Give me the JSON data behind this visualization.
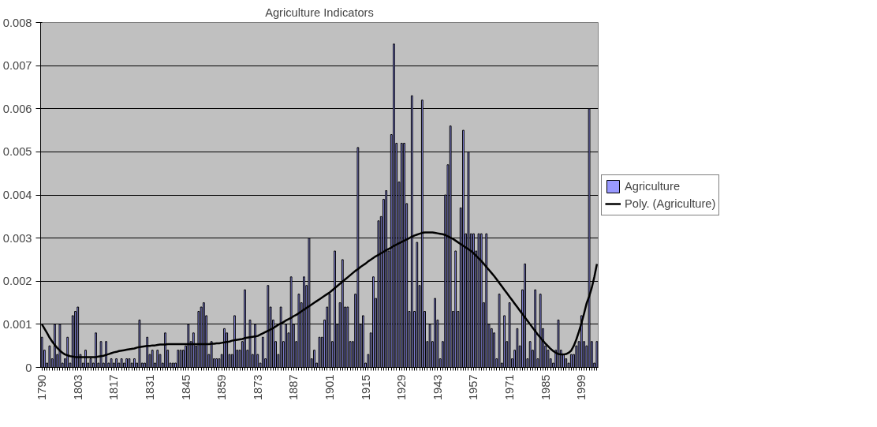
{
  "chart_data": {
    "type": "bar",
    "title": "Agriculture Indicators",
    "categories": [
      "1790",
      null,
      null,
      null,
      null,
      null,
      null,
      null,
      null,
      null,
      null,
      null,
      null,
      null,
      "1803",
      null,
      null,
      null,
      null,
      null,
      null,
      null,
      null,
      null,
      null,
      null,
      null,
      null,
      "1817",
      null,
      null,
      null,
      null,
      null,
      null,
      null,
      null,
      null,
      null,
      null,
      null,
      null,
      "1831",
      null,
      null,
      null,
      null,
      null,
      null,
      null,
      null,
      null,
      null,
      null,
      null,
      null,
      "1845",
      null,
      null,
      null,
      null,
      null,
      null,
      null,
      null,
      null,
      null,
      null,
      null,
      null,
      "1859",
      null,
      null,
      null,
      null,
      null,
      null,
      null,
      null,
      null,
      null,
      null,
      null,
      null,
      "1873",
      null,
      null,
      null,
      null,
      null,
      null,
      null,
      null,
      null,
      null,
      null,
      null,
      null,
      "1887",
      null,
      null,
      null,
      null,
      null,
      null,
      null,
      null,
      null,
      null,
      null,
      null,
      null,
      "1901",
      null,
      null,
      null,
      null,
      null,
      null,
      null,
      null,
      null,
      null,
      null,
      null,
      null,
      "1915",
      null,
      null,
      null,
      null,
      null,
      null,
      null,
      null,
      null,
      null,
      null,
      null,
      null,
      "1929",
      null,
      null,
      null,
      null,
      null,
      null,
      null,
      null,
      null,
      null,
      null,
      null,
      null,
      "1943",
      null,
      null,
      null,
      null,
      null,
      null,
      null,
      null,
      null,
      null,
      null,
      null,
      null,
      "1957",
      null,
      null,
      null,
      null,
      null,
      null,
      null,
      null,
      null,
      null,
      null,
      null,
      null,
      "1971",
      null,
      null,
      null,
      null,
      null,
      null,
      null,
      null,
      null,
      null,
      null,
      null,
      null,
      "1985",
      null,
      null,
      null,
      null,
      null,
      null,
      null,
      null,
      null,
      null,
      null,
      null,
      null,
      "1999",
      null,
      null,
      null,
      null,
      null,
      null
    ],
    "series": [
      {
        "name": "Agriculture",
        "color": "#9999ff",
        "values": [
          0.0007,
          0.0004,
          0.0001,
          0.0005,
          0.0002,
          0.001,
          0.0003,
          0.001,
          0.0001,
          0.0002,
          0.0007,
          0.0001,
          0.0012,
          0.0013,
          0.0014,
          0.0003,
          0.0001,
          0.0004,
          0.0001,
          0.0002,
          0.0001,
          0.0008,
          0.0001,
          0.0006,
          0.0001,
          0.0006,
          0.0001,
          0.0002,
          0.0001,
          0.0002,
          0.0001,
          0.0002,
          0.0001,
          0.0002,
          0.0002,
          0.0001,
          0.0002,
          0.0001,
          0.0011,
          0.0001,
          0.0001,
          0.0007,
          0.0003,
          0.0004,
          0.0001,
          0.0004,
          0.0003,
          0.0001,
          0.0008,
          0.0004,
          0.0001,
          0.0001,
          0.0001,
          0.0004,
          0.0004,
          0.0004,
          0.0005,
          0.001,
          0.0006,
          0.0008,
          0.0005,
          0.0013,
          0.0014,
          0.0015,
          0.0012,
          0.0003,
          0.0006,
          0.0002,
          0.0002,
          0.0002,
          0.0003,
          0.0009,
          0.0008,
          0.0003,
          0.0003,
          0.0012,
          0.0004,
          0.0004,
          0.0006,
          0.0018,
          0.0004,
          0.0011,
          0.0003,
          0.001,
          0.0003,
          0.0001,
          0.0007,
          0.0002,
          0.0019,
          0.0014,
          0.0011,
          0.0006,
          0.0003,
          0.0014,
          0.0006,
          0.001,
          0.0008,
          0.0021,
          0.001,
          0.0006,
          0.0017,
          0.0015,
          0.0021,
          0.0019,
          0.003,
          0.0002,
          0.0004,
          0.0001,
          0.0007,
          0.0007,
          0.0011,
          0.0014,
          0.0017,
          0.0006,
          0.0027,
          0.001,
          0.0015,
          0.0025,
          0.0014,
          0.0014,
          0.0006,
          0.0006,
          0.0017,
          0.0051,
          0.001,
          0.0012,
          0.0001,
          0.0003,
          0.0008,
          0.0021,
          0.0016,
          0.0034,
          0.0035,
          0.0039,
          0.0041,
          0.0027,
          0.0054,
          0.0075,
          0.0052,
          0.0043,
          0.0052,
          0.0052,
          0.0038,
          0.0013,
          0.0063,
          0.0013,
          0.0029,
          0.0019,
          0.0062,
          0.0013,
          0.0006,
          0.001,
          0.0006,
          0.0016,
          0.0011,
          0.0002,
          0.0006,
          0.004,
          0.0047,
          0.0056,
          0.0013,
          0.0027,
          0.0013,
          0.0037,
          0.0055,
          0.0031,
          0.005,
          0.0031,
          0.0031,
          0.0027,
          0.0031,
          0.0031,
          0.0015,
          0.0031,
          0.001,
          0.0009,
          0.0008,
          0.0002,
          0.0017,
          0.0001,
          0.0012,
          0.0006,
          0.0015,
          0.0002,
          0.0004,
          0.0009,
          0.0005,
          0.0018,
          0.0024,
          0.0002,
          0.0006,
          0.0004,
          0.0018,
          0.0002,
          0.0017,
          0.0009,
          0.0005,
          0.0004,
          0.0002,
          0.0001,
          0.0004,
          0.0011,
          0.0004,
          0.0003,
          0.0002,
          0.0001,
          0.0003,
          0.0003,
          0.0005,
          0.0006,
          0.0012,
          0.0006,
          0.0005,
          0.006,
          0.0006,
          0.0001,
          0.0006
        ]
      },
      {
        "name": "Poly. (Agriculture)",
        "type": "line",
        "color": "#000000",
        "values": [
          0.001,
          0.0009,
          0.0008,
          0.00069,
          0.0006,
          0.00052,
          0.00045,
          0.00039,
          0.00034,
          0.0003,
          0.00028,
          0.00026,
          0.00025,
          0.00024,
          0.00024,
          0.00024,
          0.00024,
          0.00024,
          0.00024,
          0.00024,
          0.00024,
          0.00024,
          0.00025,
          0.00026,
          0.00027,
          0.00029,
          0.00031,
          0.00033,
          0.00035,
          0.00036,
          0.00038,
          0.00039,
          0.0004,
          0.00041,
          0.00042,
          0.00043,
          0.00044,
          0.00046,
          0.00047,
          0.00048,
          0.00049,
          0.0005,
          0.0005,
          0.00051,
          0.00051,
          0.00052,
          0.00053,
          0.00053,
          0.00053,
          0.00054,
          0.00054,
          0.00054,
          0.00054,
          0.00054,
          0.00054,
          0.00054,
          0.00054,
          0.00054,
          0.00054,
          0.00054,
          0.00054,
          0.00054,
          0.00054,
          0.00054,
          0.00054,
          0.00054,
          0.00055,
          0.00055,
          0.00056,
          0.00056,
          0.00057,
          0.00058,
          0.00059,
          0.0006,
          0.00062,
          0.00063,
          0.00064,
          0.00065,
          0.00066,
          0.00068,
          0.00069,
          0.0007,
          0.00071,
          0.00072,
          0.00073,
          0.00076,
          0.00079,
          0.00082,
          0.00085,
          0.00088,
          0.00091,
          0.00095,
          0.00099,
          0.00102,
          0.00105,
          0.00109,
          0.00112,
          0.00115,
          0.00119,
          0.00122,
          0.00126,
          0.0013,
          0.00134,
          0.00138,
          0.00142,
          0.00146,
          0.0015,
          0.00154,
          0.00158,
          0.00162,
          0.00166,
          0.0017,
          0.00174,
          0.00179,
          0.00184,
          0.00189,
          0.00194,
          0.00199,
          0.00204,
          0.00209,
          0.00214,
          0.00219,
          0.00224,
          0.00228,
          0.00233,
          0.00237,
          0.00241,
          0.00246,
          0.0025,
          0.00254,
          0.00258,
          0.00261,
          0.00265,
          0.00268,
          0.00272,
          0.00275,
          0.00278,
          0.00282,
          0.00285,
          0.00288,
          0.00291,
          0.00294,
          0.00297,
          0.003,
          0.00303,
          0.00306,
          0.00308,
          0.0031,
          0.00312,
          0.00313,
          0.00313,
          0.00313,
          0.00313,
          0.00312,
          0.00311,
          0.0031,
          0.00309,
          0.00307,
          0.00304,
          0.00301,
          0.00298,
          0.00294,
          0.0029,
          0.00286,
          0.00282,
          0.00278,
          0.00274,
          0.0027,
          0.00265,
          0.00259,
          0.00253,
          0.00247,
          0.0024,
          0.00233,
          0.00226,
          0.00219,
          0.00212,
          0.00204,
          0.00196,
          0.00188,
          0.0018,
          0.00172,
          0.00164,
          0.00156,
          0.00148,
          0.0014,
          0.00132,
          0.00124,
          0.00116,
          0.00108,
          0.001,
          0.00092,
          0.00084,
          0.00076,
          0.00069,
          0.00062,
          0.00055,
          0.00049,
          0.00043,
          0.00038,
          0.00034,
          0.00031,
          0.0003,
          0.0003,
          0.00031,
          0.00034,
          0.00039,
          0.0005,
          0.00065,
          0.00083,
          0.00103,
          0.00125,
          0.00149,
          0.00165,
          0.00185,
          0.0021,
          0.0024
        ]
      }
    ],
    "ylim": [
      0,
      0.008
    ],
    "yticks": [
      0,
      0.001,
      0.002,
      0.003,
      0.004,
      0.005,
      0.006,
      0.007,
      0.008
    ],
    "grid": "y",
    "legend": "right"
  }
}
